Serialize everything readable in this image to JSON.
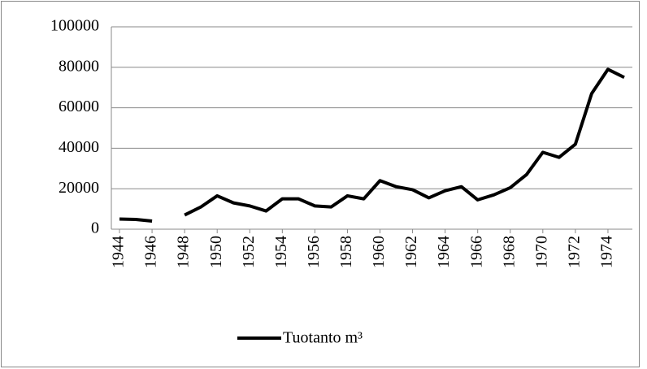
{
  "chart_data": {
    "type": "line",
    "x": [
      1944,
      1945,
      1946,
      1947,
      1948,
      1949,
      1950,
      1951,
      1952,
      1953,
      1954,
      1955,
      1956,
      1957,
      1958,
      1959,
      1960,
      1961,
      1962,
      1963,
      1964,
      1965,
      1966,
      1967,
      1968,
      1969,
      1970,
      1971,
      1972,
      1973,
      1974,
      1975
    ],
    "series": [
      {
        "name": "Tuotanto m³",
        "color": "#000000",
        "values": [
          5000,
          4800,
          4000,
          null,
          7000,
          11000,
          16500,
          13000,
          11500,
          9000,
          15000,
          15000,
          11500,
          11000,
          16500,
          15000,
          24000,
          21000,
          19500,
          15500,
          19000,
          21000,
          14500,
          17000,
          20500,
          27000,
          38000,
          35500,
          42000,
          67000,
          79000,
          75000
        ]
      }
    ],
    "xlim": [
      1943.5,
      1975.5
    ],
    "xticks": [
      1944,
      1946,
      1948,
      1950,
      1952,
      1954,
      1956,
      1958,
      1960,
      1962,
      1964,
      1966,
      1968,
      1970,
      1972,
      1974
    ],
    "ylim": [
      0,
      100000
    ],
    "yticks": [
      0,
      20000,
      40000,
      60000,
      80000,
      100000
    ],
    "grid": true,
    "legend": "bottom"
  }
}
